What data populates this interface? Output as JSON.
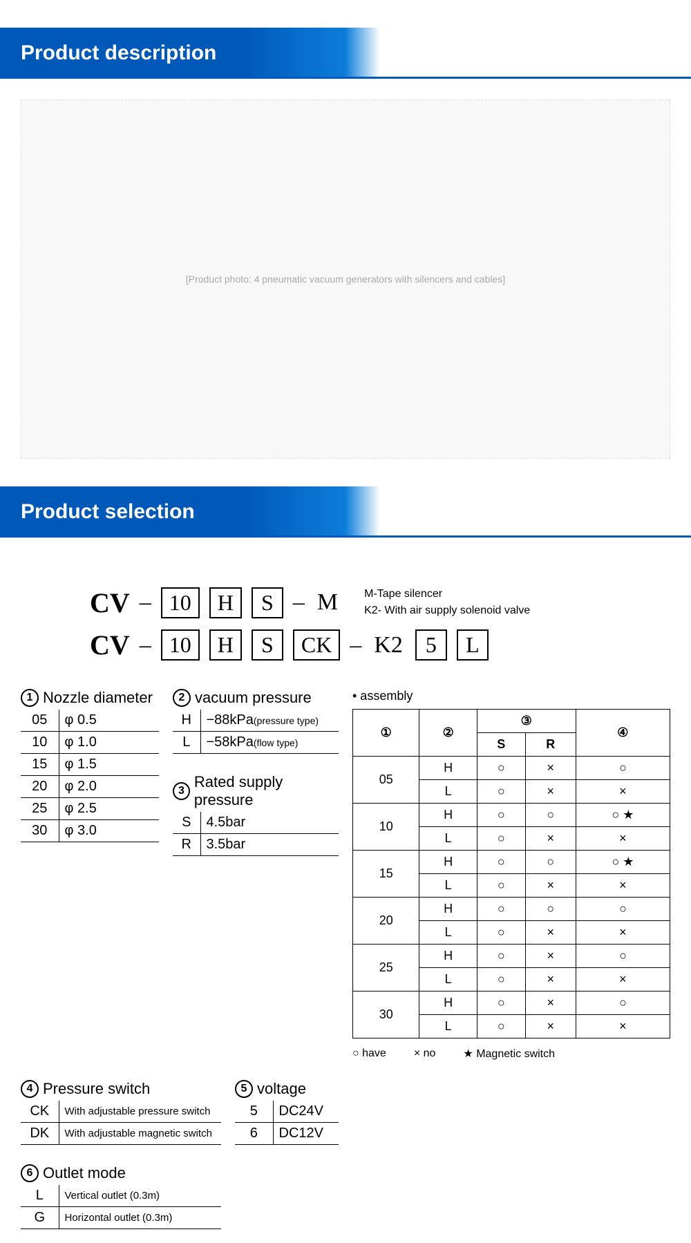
{
  "banners": {
    "description": "Product description",
    "selection": "Product selection"
  },
  "productImagePlaceholder": "[Product photo: 4 pneumatic vacuum generators with silencers and cables]",
  "codeLines": {
    "line1": {
      "prefix": "CV",
      "p1": "10",
      "p2": "H",
      "p3": "S",
      "suffix": "M"
    },
    "line2": {
      "prefix": "CV",
      "p1": "10",
      "p2": "H",
      "p3": "S",
      "p4": "CK",
      "mid": "K2",
      "p5": "5",
      "p6": "L"
    },
    "notes": {
      "n1": "M-Tape silencer",
      "n2": "K2- With air supply solenoid valve"
    }
  },
  "nozzle": {
    "title": "Nozzle diameter",
    "num": "1",
    "rows": [
      [
        "05",
        "φ 0.5"
      ],
      [
        "10",
        "φ 1.0"
      ],
      [
        "15",
        "φ 1.5"
      ],
      [
        "20",
        "φ 2.0"
      ],
      [
        "25",
        "φ 2.5"
      ],
      [
        "30",
        "φ 3.0"
      ]
    ]
  },
  "vacuum": {
    "title": "vacuum pressure",
    "num": "2",
    "rows": [
      {
        "c": "H",
        "v": "−88kPa",
        "note": "(pressure type)"
      },
      {
        "c": "L",
        "v": "−58kPa",
        "note": "(flow type)"
      }
    ]
  },
  "rated": {
    "title": "Rated supply pressure",
    "num": "3",
    "rows": [
      [
        "S",
        "4.5bar"
      ],
      [
        "R",
        "3.5bar"
      ]
    ]
  },
  "pswitch": {
    "title": "Pressure switch",
    "num": "4",
    "rows": [
      [
        "CK",
        "With adjustable pressure switch"
      ],
      [
        "DK",
        "With adjustable magnetic switch"
      ]
    ]
  },
  "voltage": {
    "title": "voltage",
    "num": "5",
    "rows": [
      [
        "5",
        "DC24V"
      ],
      [
        "6",
        "DC12V"
      ]
    ]
  },
  "outlet": {
    "title": "Outlet mode",
    "num": "6",
    "rows": [
      [
        "L",
        "Vertical outlet   (0.3m)"
      ],
      [
        "G",
        "Horizontal outlet  (0.3m)"
      ]
    ]
  },
  "assembly": {
    "title": "• assembly",
    "colHeaders": {
      "c1": "①",
      "c2": "②",
      "c3": "③",
      "c3s": "S",
      "c3r": "R",
      "c4": "④"
    },
    "rows": [
      {
        "g": "05",
        "sub": [
          {
            "c2": "H",
            "s": "○",
            "r": "×",
            "c4": "○"
          },
          {
            "c2": "L",
            "s": "○",
            "r": "×",
            "c4": "×"
          }
        ]
      },
      {
        "g": "10",
        "sub": [
          {
            "c2": "H",
            "s": "○",
            "r": "○",
            "c4": "○ ★"
          },
          {
            "c2": "L",
            "s": "○",
            "r": "×",
            "c4": "×"
          }
        ]
      },
      {
        "g": "15",
        "sub": [
          {
            "c2": "H",
            "s": "○",
            "r": "○",
            "c4": "○ ★"
          },
          {
            "c2": "L",
            "s": "○",
            "r": "×",
            "c4": "×"
          }
        ]
      },
      {
        "g": "20",
        "sub": [
          {
            "c2": "H",
            "s": "○",
            "r": "○",
            "c4": "○"
          },
          {
            "c2": "L",
            "s": "○",
            "r": "×",
            "c4": "×"
          }
        ]
      },
      {
        "g": "25",
        "sub": [
          {
            "c2": "H",
            "s": "○",
            "r": "×",
            "c4": "○"
          },
          {
            "c2": "L",
            "s": "○",
            "r": "×",
            "c4": "×"
          }
        ]
      },
      {
        "g": "30",
        "sub": [
          {
            "c2": "H",
            "s": "○",
            "r": "×",
            "c4": "○"
          },
          {
            "c2": "L",
            "s": "○",
            "r": "×",
            "c4": "×"
          }
        ]
      }
    ],
    "legend": {
      "have": "○ have",
      "no": "× no",
      "mag": "★  Magnetic switch"
    }
  }
}
